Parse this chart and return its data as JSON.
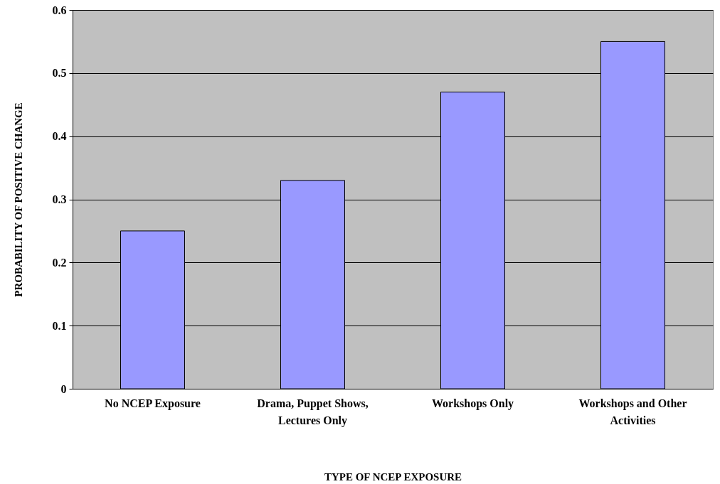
{
  "chart_data": {
    "type": "bar",
    "categories": [
      "No NCEP Exposure",
      "Drama, Puppet Shows, Lectures Only",
      "Workshops Only",
      "Workshops and Other Activities"
    ],
    "values": [
      0.25,
      0.33,
      0.47,
      0.55
    ],
    "color": "#9999ff",
    "xlabel": "TYPE OF NCEP EXPOSURE",
    "ylabel": "PROBABILITY OF POSITIVE CHANGE",
    "ylim": [
      0,
      0.6
    ],
    "yticks": [
      0,
      0.1,
      0.2,
      0.3,
      0.4,
      0.5,
      0.6
    ],
    "grid": "y"
  }
}
